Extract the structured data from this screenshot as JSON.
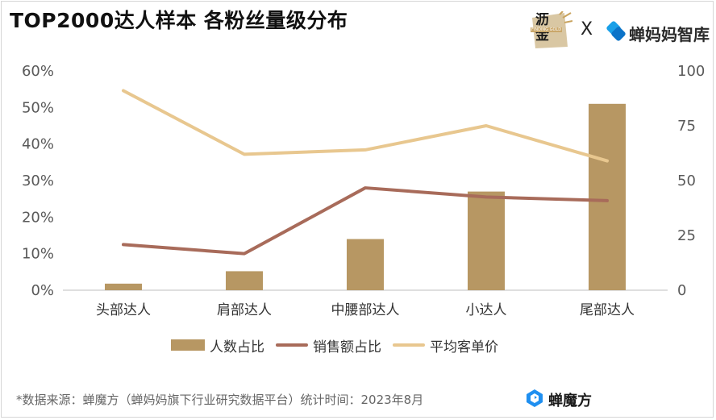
{
  "title": "TOP2000达人样本 各粉丝量级分布",
  "logos": {
    "partner_text": "沥金",
    "partner_sub": "FINDING GOLD",
    "separator": "X",
    "brand": "蝉妈妈智库"
  },
  "footer": {
    "note": "*数据来源：蝉魔方（蝉妈妈旗下行业研究数据平台）统计时间：2023年8月",
    "brand": "蝉魔方"
  },
  "colors": {
    "bar": "#b79763",
    "sales_line": "#a86b5a",
    "price_line": "#e8c78f",
    "axis": "#bfbfbf",
    "text": "#595959"
  },
  "chart_data": {
    "type": "bar",
    "categories": [
      "头部达人",
      "肩部达人",
      "中腰部达人",
      "小达人",
      "尾部达人"
    ],
    "y_left": {
      "ticks": [
        "0%",
        "10%",
        "20%",
        "30%",
        "40%",
        "50%",
        "60%"
      ],
      "lim": [
        0,
        60
      ]
    },
    "y_right": {
      "ticks": [
        "0",
        "25",
        "50",
        "75",
        "100"
      ],
      "lim": [
        0,
        100
      ]
    },
    "grid": false,
    "legend_position": "bottom",
    "series": [
      {
        "name": "人数占比",
        "type": "bar",
        "axis": "left",
        "values": [
          1.8,
          5.2,
          14.0,
          27.0,
          51.0
        ]
      },
      {
        "name": "销售额占比",
        "type": "line",
        "axis": "left",
        "values": [
          12.5,
          10.0,
          28.0,
          25.5,
          24.5
        ]
      },
      {
        "name": "平均客单价",
        "type": "line",
        "axis": "right",
        "values": [
          91,
          62,
          64,
          75,
          59
        ]
      }
    ]
  }
}
